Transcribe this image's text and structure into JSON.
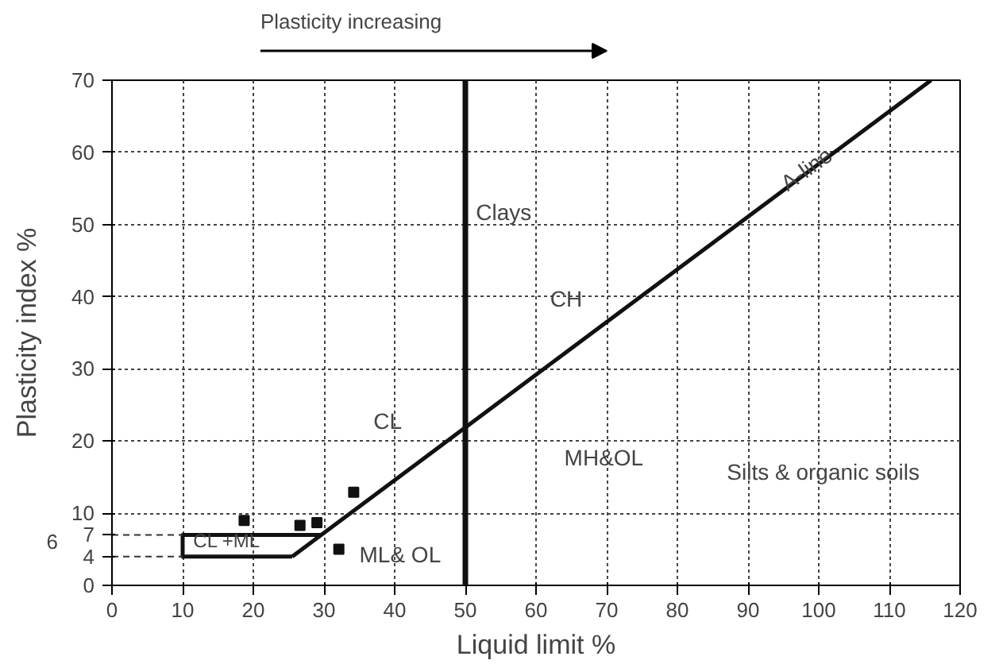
{
  "chart_data": {
    "type": "scatter",
    "title": "Plasticity increasing",
    "xlabel": "Liquid limit %",
    "ylabel": "Plasticity index %",
    "xlim": [
      0,
      120
    ],
    "ylim": [
      0,
      70
    ],
    "xticks": [
      0,
      10,
      20,
      30,
      40,
      50,
      60,
      70,
      80,
      90,
      100,
      110,
      120
    ],
    "yticks": [
      0,
      4,
      7,
      10,
      20,
      30,
      40,
      50,
      60,
      70
    ],
    "grid": true,
    "series": [
      {
        "marker": "square",
        "color": "#111111",
        "x": [
          18.7,
          26.6,
          29.0,
          32.1,
          34.2
        ],
        "values": [
          9.0,
          8.3,
          8.7,
          5.0,
          12.9
        ]
      },
      {
        "type": "line",
        "marker": "none",
        "color": "#111111",
        "x": [
          25.5,
          115.9
        ],
        "values": [
          4,
          70
        ]
      },
      {
        "type": "line",
        "marker": "none",
        "color": "#111111",
        "x": [
          29.6,
          10,
          10,
          25.5
        ],
        "values": [
          7,
          7,
          4,
          4
        ]
      },
      {
        "type": "line",
        "marker": "none",
        "color": "#333333",
        "line_style": "dashed",
        "x": [
          0,
          10
        ],
        "values": [
          7,
          7
        ]
      },
      {
        "type": "line",
        "marker": "none",
        "color": "#333333",
        "line_style": "dashed",
        "x": [
          0,
          10
        ],
        "values": [
          4,
          4
        ]
      }
    ],
    "ref_lines": [
      {
        "axis": "x",
        "value": 50,
        "label": null,
        "color": "#111111"
      }
    ],
    "annotations": [
      "Clays",
      "CH",
      "CL",
      "MH&OL",
      "Silts & organic soils",
      "ML& OL",
      "CL +ML",
      "A-line",
      "6"
    ]
  }
}
